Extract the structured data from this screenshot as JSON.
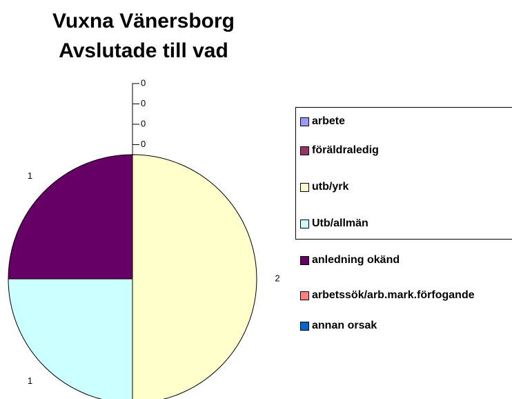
{
  "chart_data": {
    "type": "pie",
    "title": [
      "Vuxna Vänersborg",
      "Avslutade till vad"
    ],
    "categories": [
      "arbete",
      "föräldraledig",
      "utb/yrk",
      "Utb/allmän",
      "anledning okänd",
      "arbetssök/arb.mark.förfogande",
      "annan orsak"
    ],
    "values": [
      0,
      0,
      2,
      1,
      1,
      0,
      0
    ],
    "colors": [
      "#9999ff",
      "#993366",
      "#ffffcc",
      "#ccffff",
      "#660066",
      "#ff8080",
      "#0066cc"
    ]
  }
}
